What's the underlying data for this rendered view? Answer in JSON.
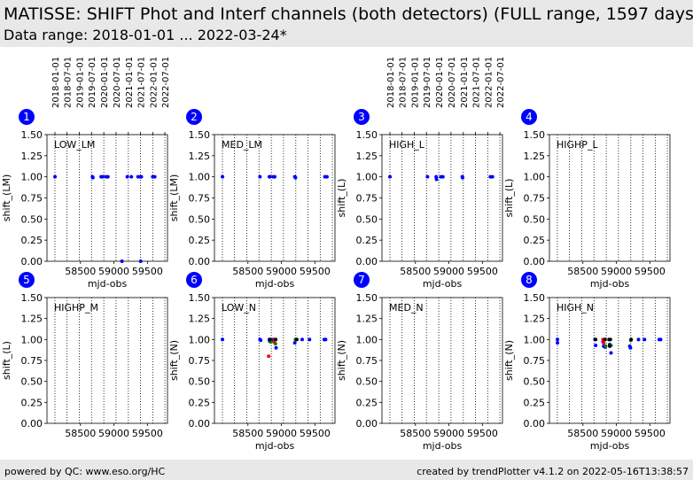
{
  "header": {
    "title": "MATISSE: SHIFT Phot and Interf channels (both detectors) (FULL range, 1597 days)",
    "subtitle": "Data range: 2018-01-01 ... 2022-03-24*"
  },
  "footer": {
    "left": "powered by QC: www.eso.org/HC",
    "right": "created by trendPlotter v4.1.2 on 2022-05-16T13:38:57"
  },
  "colors": {
    "header_bg": "#e8e8e8",
    "panel_badge": "#0000ff",
    "series_blue": "#0000ff",
    "series_red": "#ff0000",
    "series_green": "#008000",
    "series_black": "#000000"
  },
  "top_date_ticks": [
    "2018-01-01",
    "2018-07-01",
    "2019-01-01",
    "2019-07-01",
    "2020-01-01",
    "2020-07-01",
    "2021-01-01",
    "2021-07-01",
    "2022-01-01",
    "2022-07-01"
  ],
  "chart_data": [
    {
      "type": "scatter",
      "panel": "1",
      "label": "LOW_LM",
      "xlabel": "mjd-obs",
      "ylabel": "shift_(LM)",
      "xlim": [
        58000,
        59800
      ],
      "ylim": [
        0.0,
        1.5
      ],
      "xticks": [
        58500,
        59000,
        59500
      ],
      "yticks": [
        0.0,
        0.25,
        0.5,
        0.75,
        1.0,
        1.25,
        1.5
      ],
      "grid": "vertical dotted",
      "series": [
        {
          "color": "blue",
          "points": [
            [
              58120,
              1.0
            ],
            [
              58680,
              1.0
            ],
            [
              58685,
              0.99
            ],
            [
              58810,
              1.0
            ],
            [
              58830,
              1.0
            ],
            [
              58880,
              1.0
            ],
            [
              58910,
              1.0
            ],
            [
              59200,
              1.0
            ],
            [
              59260,
              1.0
            ],
            [
              59360,
              1.0
            ],
            [
              59390,
              1.0
            ],
            [
              59410,
              1.0
            ],
            [
              59580,
              1.0
            ],
            [
              59610,
              1.0
            ],
            [
              59120,
              0.0
            ],
            [
              59400,
              0.0
            ]
          ]
        }
      ]
    },
    {
      "type": "scatter",
      "panel": "2",
      "label": "MED_LM",
      "xlabel": "mjd-obs",
      "ylabel": "shift_(LM)",
      "xlim": [
        58000,
        59800
      ],
      "ylim": [
        0.0,
        1.5
      ],
      "xticks": [
        58500,
        59000,
        59500
      ],
      "yticks": [
        0.0,
        0.25,
        0.5,
        0.75,
        1.0,
        1.25,
        1.5
      ],
      "grid": "vertical dotted",
      "series": [
        {
          "color": "blue",
          "points": [
            [
              58120,
              1.0
            ],
            [
              58680,
              1.0
            ],
            [
              58820,
              1.0
            ],
            [
              58830,
              1.0
            ],
            [
              58880,
              1.0
            ],
            [
              58900,
              1.0
            ],
            [
              59200,
              1.0
            ],
            [
              59210,
              0.99
            ],
            [
              59650,
              1.0
            ],
            [
              59680,
              1.0
            ]
          ]
        }
      ]
    },
    {
      "type": "scatter",
      "panel": "3",
      "label": "HIGH_L",
      "xlabel": "mjd-obs",
      "ylabel": "shift_(L)",
      "xlim": [
        58000,
        59800
      ],
      "ylim": [
        0.0,
        1.5
      ],
      "xticks": [
        58500,
        59000,
        59500
      ],
      "yticks": [
        0.0,
        0.25,
        0.5,
        0.75,
        1.0,
        1.25,
        1.5
      ],
      "grid": "vertical dotted",
      "series": [
        {
          "color": "blue",
          "points": [
            [
              58120,
              1.0
            ],
            [
              58680,
              1.0
            ],
            [
              58810,
              1.0
            ],
            [
              58815,
              0.97
            ],
            [
              58880,
              1.0
            ],
            [
              58910,
              1.0
            ],
            [
              59200,
              1.0
            ],
            [
              59205,
              0.99
            ],
            [
              59620,
              1.0
            ],
            [
              59650,
              1.0
            ]
          ]
        }
      ]
    },
    {
      "type": "scatter",
      "panel": "4",
      "label": "HIGHP_L",
      "xlabel": "mjd-obs",
      "ylabel": "shift_(L)",
      "xlim": [
        58000,
        59800
      ],
      "ylim": [
        0.0,
        1.5
      ],
      "xticks": [
        58500,
        59000,
        59500
      ],
      "yticks": [
        0.0,
        0.25,
        0.5,
        0.75,
        1.0,
        1.25,
        1.5
      ],
      "grid": "vertical dotted",
      "series": []
    },
    {
      "type": "scatter",
      "panel": "5",
      "label": "HIGHP_M",
      "xlabel": "",
      "ylabel": "shift_(L)",
      "xlim": [
        58000,
        59800
      ],
      "ylim": [
        0.0,
        1.5
      ],
      "xticks": [
        58500,
        59000,
        59500
      ],
      "yticks": [
        0.0,
        0.25,
        0.5,
        0.75,
        1.0,
        1.25,
        1.5
      ],
      "grid": "vertical dotted",
      "series": []
    },
    {
      "type": "scatter",
      "panel": "6",
      "label": "LOW_N",
      "xlabel": "mjd-obs",
      "ylabel": "shift_(N)",
      "xlim": [
        58000,
        59800
      ],
      "ylim": [
        0.0,
        1.5
      ],
      "xticks": [
        58500,
        59000,
        59500
      ],
      "yticks": [
        0.0,
        0.25,
        0.5,
        0.75,
        1.0,
        1.25,
        1.5
      ],
      "grid": "vertical dotted",
      "series": [
        {
          "color": "blue",
          "points": [
            [
              58120,
              1.0
            ],
            [
              58680,
              1.0
            ],
            [
              58690,
              0.99
            ],
            [
              58820,
              1.0
            ],
            [
              58825,
              0.98
            ],
            [
              58920,
              0.9
            ],
            [
              59200,
              0.96
            ],
            [
              59310,
              1.0
            ],
            [
              59420,
              1.0
            ],
            [
              59640,
              1.0
            ],
            [
              59660,
              1.0
            ],
            [
              58880,
              1.0
            ]
          ]
        },
        {
          "color": "red",
          "points": [
            [
              58810,
              0.8
            ],
            [
              58900,
              1.0
            ],
            [
              58890,
              0.97
            ]
          ]
        },
        {
          "color": "green",
          "points": [
            [
              58840,
              0.97
            ],
            [
              58910,
              0.95
            ],
            [
              59210,
              1.0
            ]
          ]
        },
        {
          "color": "black",
          "points": [
            [
              58830,
              1.0
            ],
            [
              58915,
              1.0
            ],
            [
              59230,
              1.0
            ]
          ]
        }
      ]
    },
    {
      "type": "scatter",
      "panel": "7",
      "label": "MED_N",
      "xlabel": "mjd-obs",
      "ylabel": "shift_(N)",
      "xlim": [
        58000,
        59800
      ],
      "ylim": [
        0.0,
        1.5
      ],
      "xticks": [
        58500,
        59000,
        59500
      ],
      "yticks": [
        0.0,
        0.25,
        0.5,
        0.75,
        1.0,
        1.25,
        1.5
      ],
      "grid": "vertical dotted",
      "series": []
    },
    {
      "type": "scatter",
      "panel": "8",
      "label": "HIGH_N",
      "xlabel": "mjd-obs",
      "ylabel": "shift_(N)",
      "xlim": [
        58000,
        59800
      ],
      "ylim": [
        0.0,
        1.5
      ],
      "xticks": [
        58500,
        59000,
        59500
      ],
      "yticks": [
        0.0,
        0.25,
        0.5,
        0.75,
        1.0,
        1.25,
        1.5
      ],
      "grid": "vertical dotted",
      "series": [
        {
          "color": "blue",
          "points": [
            [
              58120,
              1.0
            ],
            [
              58120,
              0.96
            ],
            [
              58680,
              1.0
            ],
            [
              58690,
              0.93
            ],
            [
              58800,
              0.97
            ],
            [
              58810,
              0.92
            ],
            [
              58830,
              0.91
            ],
            [
              58900,
              0.94
            ],
            [
              58920,
              0.84
            ],
            [
              59200,
              0.92
            ],
            [
              59210,
              0.9
            ],
            [
              59330,
              1.0
            ],
            [
              59420,
              1.0
            ],
            [
              59640,
              1.0
            ],
            [
              59660,
              1.0
            ]
          ]
        },
        {
          "color": "red",
          "points": [
            [
              58800,
              1.0
            ],
            [
              58810,
              0.96
            ]
          ]
        },
        {
          "color": "green",
          "points": [
            [
              58840,
              0.92
            ],
            [
              58920,
              0.93
            ],
            [
              59215,
              0.99
            ]
          ]
        },
        {
          "color": "black",
          "points": [
            [
              58690,
              1.0
            ],
            [
              58830,
              1.0
            ],
            [
              58890,
              1.0
            ],
            [
              58910,
              1.0
            ],
            [
              59220,
              1.0
            ],
            [
              58900,
              0.92
            ]
          ]
        }
      ]
    }
  ]
}
